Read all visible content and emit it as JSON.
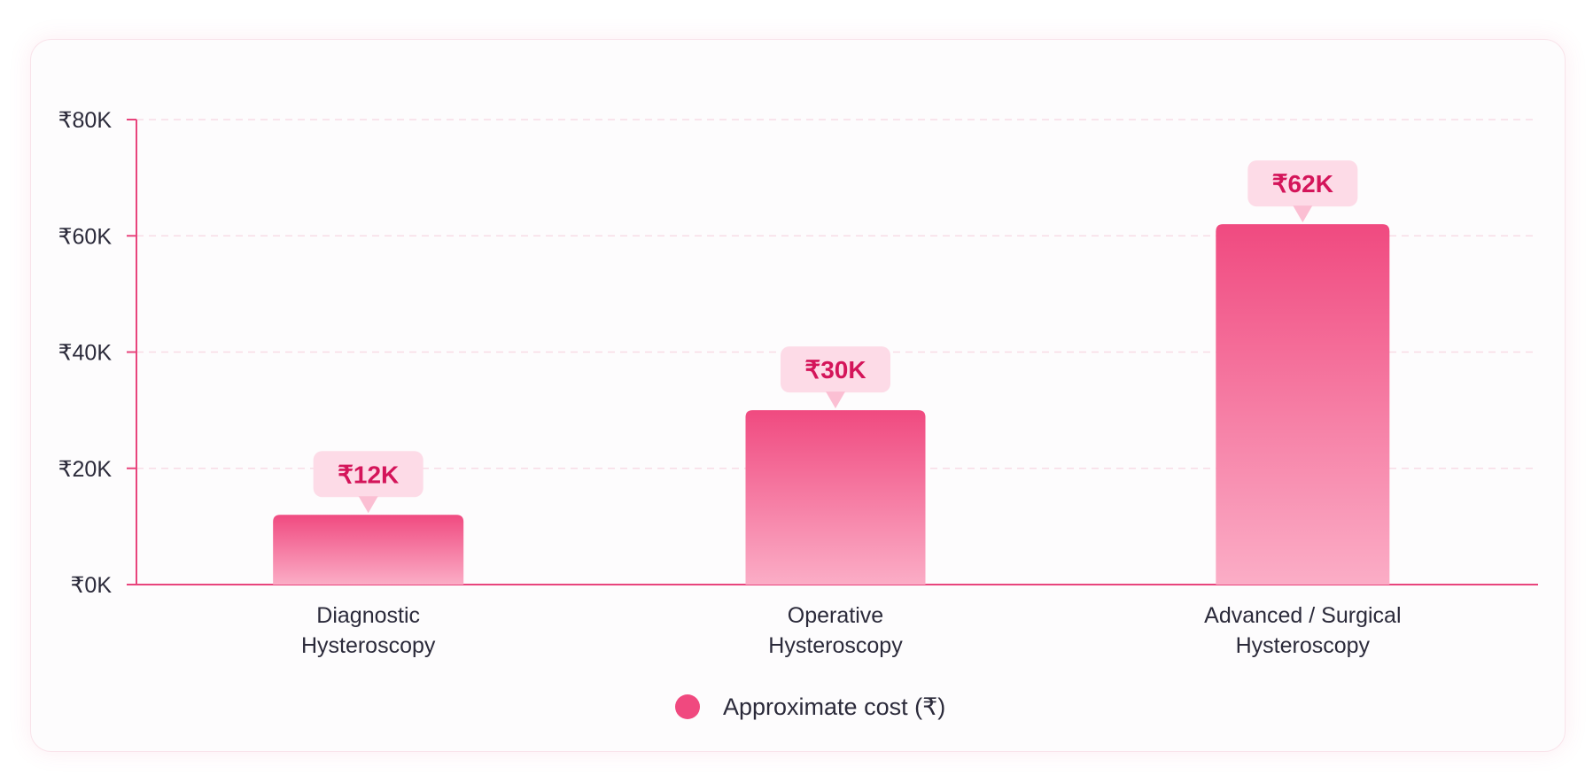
{
  "chart_data": {
    "type": "bar",
    "categories": [
      "Diagnostic Hysteroscopy",
      "Operative Hysteroscopy",
      "Advanced / Surgical Hysteroscopy"
    ],
    "category_label_lines": [
      [
        "Diagnostic",
        "Hysteroscopy"
      ],
      [
        "Operative",
        "Hysteroscopy"
      ],
      [
        "Advanced / Surgical",
        "Hysteroscopy"
      ]
    ],
    "series": [
      {
        "name": "Approximate cost (₹)",
        "values": [
          12000,
          30000,
          62000
        ]
      }
    ],
    "data_labels": [
      "₹12K",
      "₹30K",
      "₹62K"
    ],
    "yticks": [
      0,
      20000,
      40000,
      60000,
      80000
    ],
    "ytick_labels": [
      "₹0K",
      "₹20K",
      "₹40K",
      "₹60K",
      "₹80K"
    ],
    "ylim": [
      0,
      80000
    ],
    "grid": true,
    "legend_position": "bottom-center",
    "colors": {
      "bar_top": "#f04a80",
      "bar_bottom": "#fbadc6",
      "axis": "#e8447c",
      "grid": "#f8dce6",
      "label_bg": "#fddbe7",
      "label_text": "#d4155a",
      "legend_swatch": "#f0497f"
    }
  }
}
